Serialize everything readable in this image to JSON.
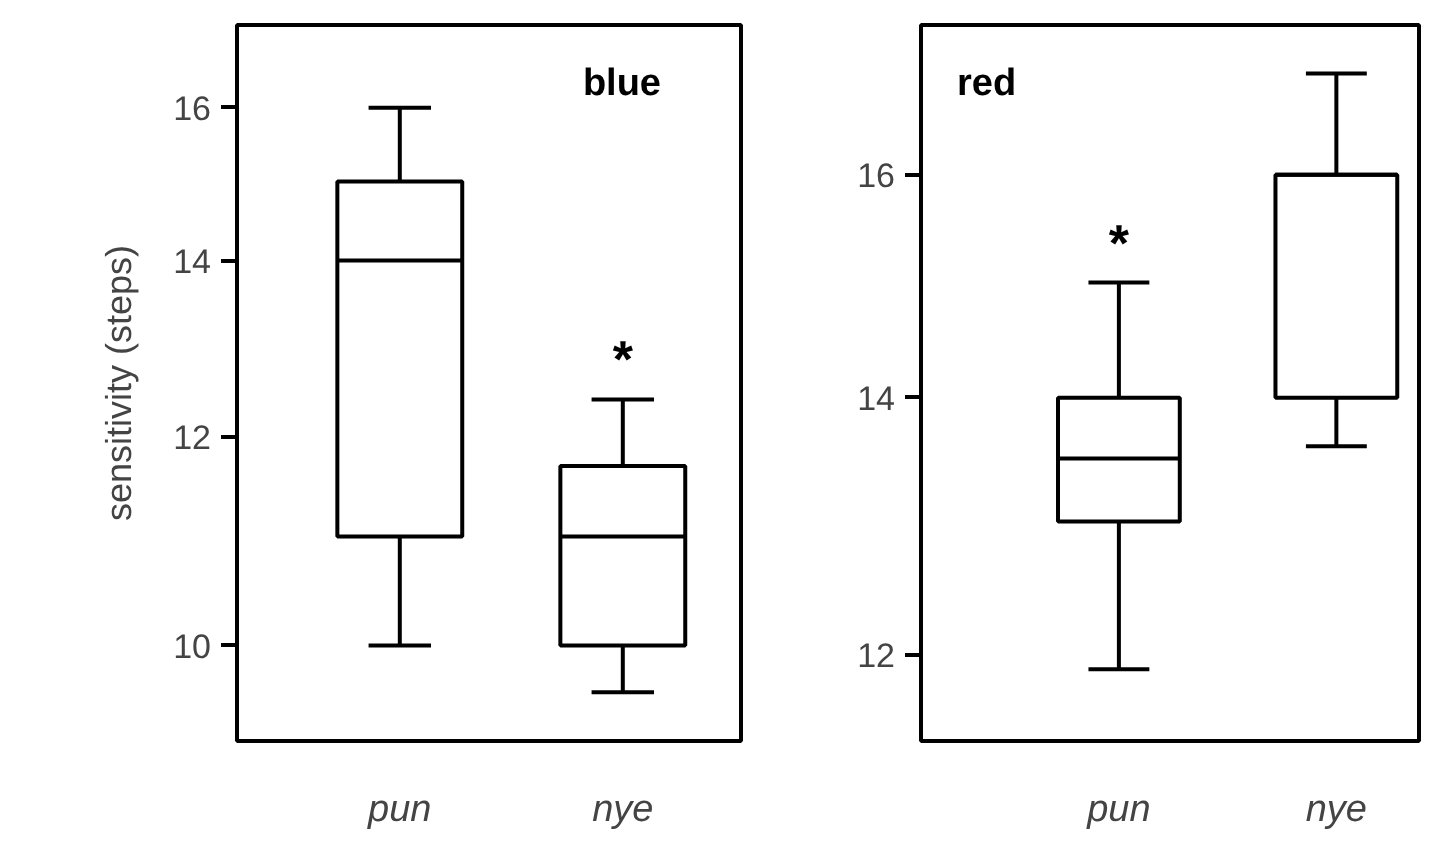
{
  "chart_data": [
    {
      "type": "box",
      "title": "blue",
      "ylabel": "sensitivity (steps)",
      "categories": [
        "pun",
        "nye"
      ],
      "log": true,
      "ylim": [
        9.2,
        17.2
      ],
      "yticks": [
        10,
        12,
        14,
        16
      ],
      "grid": false,
      "color": "#000000",
      "boxes": [
        {
          "low": 10,
          "q1": 11,
          "median": 14,
          "q3": 15,
          "high": 16
        },
        {
          "low": 9.6,
          "q1": 10,
          "median": 11,
          "q3": 11.7,
          "high": 12.4
        }
      ],
      "annotations": [
        "*"
      ]
    },
    {
      "type": "box",
      "title": "red",
      "categories": [
        "pun",
        "nye"
      ],
      "log": true,
      "ylim": [
        11.4,
        17.5
      ],
      "yticks": [
        12,
        14,
        16
      ],
      "grid": false,
      "color": "#000000",
      "boxes": [
        {
          "low": 11.9,
          "q1": 13,
          "median": 13.5,
          "q3": 14,
          "high": 15
        },
        {
          "low": 13.6,
          "q1": 14,
          "median": 16,
          "q3": 16,
          "high": 17
        }
      ],
      "annotations": [
        "*"
      ]
    }
  ]
}
